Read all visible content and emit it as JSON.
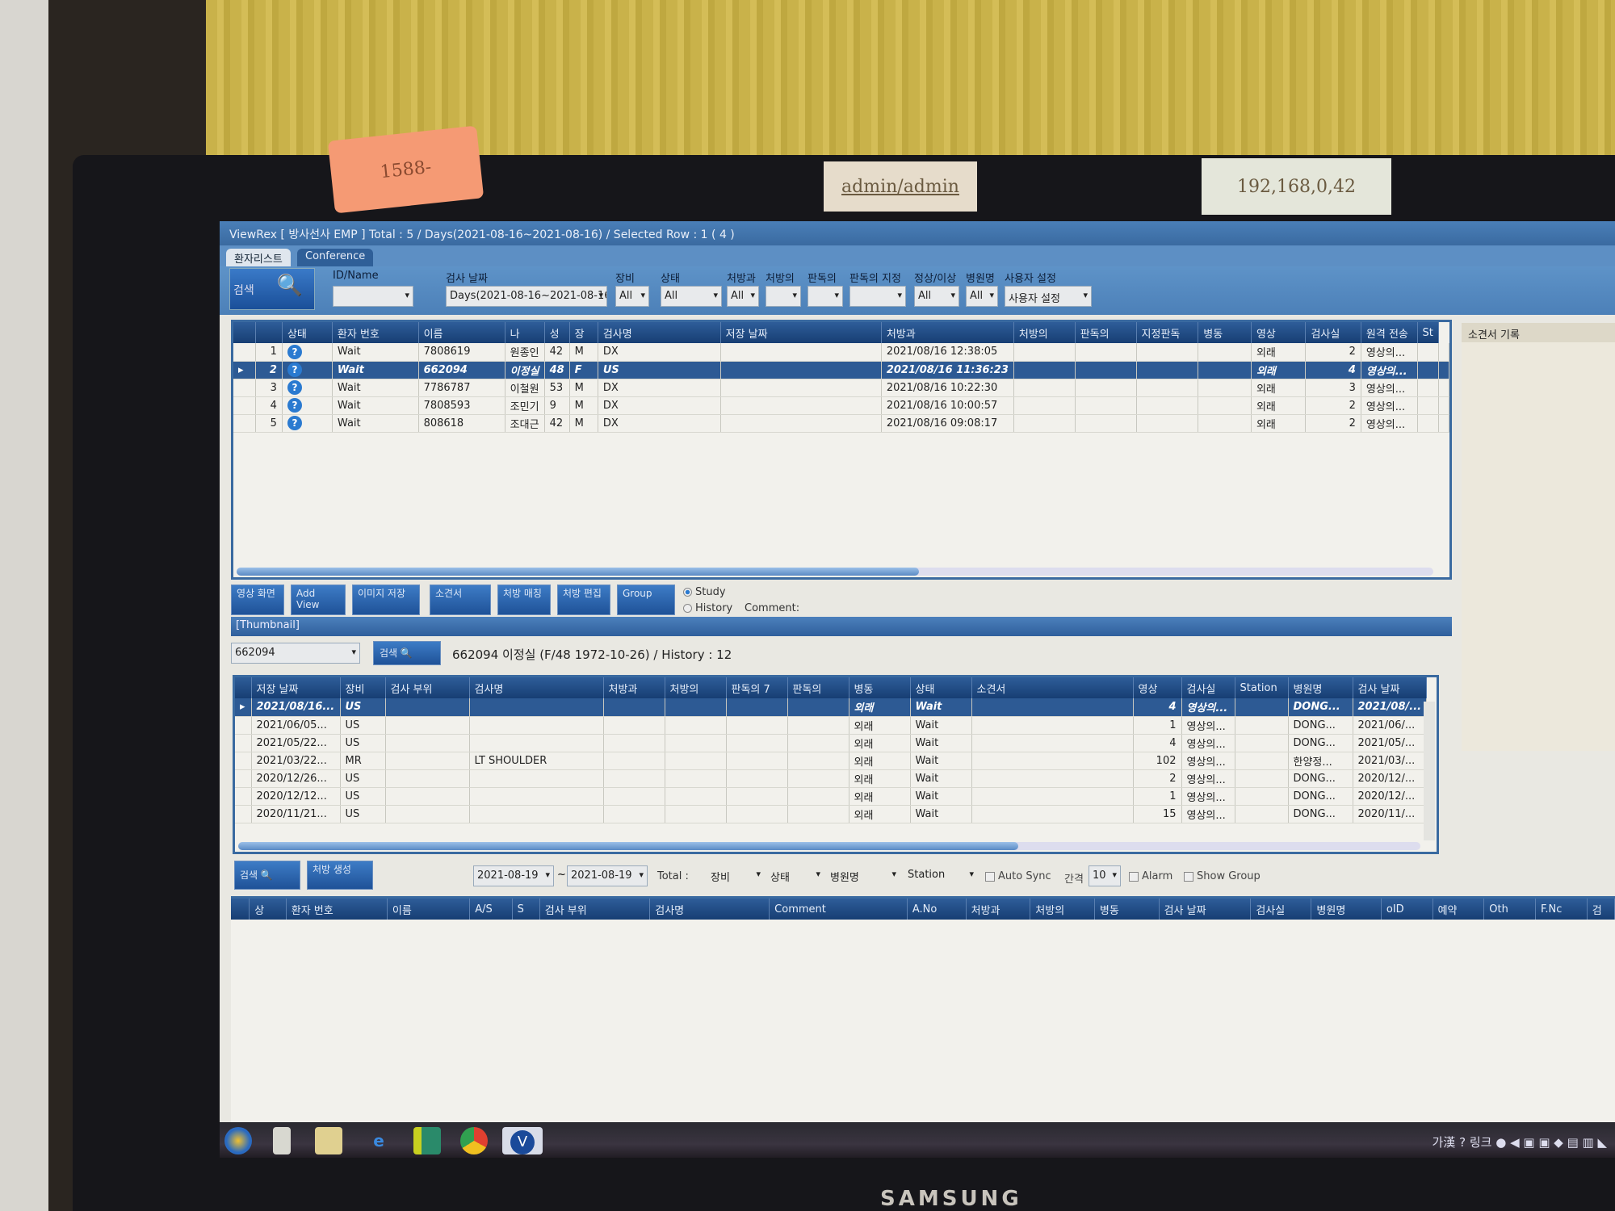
{
  "notes": {
    "phone": "1588-",
    "login": "admin/admin",
    "ip": "192,168,0,42"
  },
  "window": {
    "title": "ViewRex  [ 방사선사 EMP ] Total : 5 / Days(2021-08-16~2021-08-16) / Selected Row : 1 ( 4 )"
  },
  "tabs": [
    {
      "label": "환자리스트",
      "active": true
    },
    {
      "label": "Conference",
      "active": false
    }
  ],
  "filters": {
    "search_label": "검색",
    "fields": [
      {
        "label": "ID/Name",
        "value": ""
      },
      {
        "label": "검사 날짜",
        "value": "Days(2021-08-16~2021-08-16)"
      },
      {
        "label": "장비",
        "value": "All"
      },
      {
        "label": "상태",
        "value": "All"
      },
      {
        "label": "처방과",
        "value": "All"
      },
      {
        "label": "처방의",
        "value": ""
      },
      {
        "label": "판독의",
        "value": ""
      },
      {
        "label": "판독의 지정",
        "value": ""
      },
      {
        "label": "정상/이상",
        "value": "All"
      },
      {
        "label": "병원명",
        "value": "All"
      },
      {
        "label": "사용자 설정",
        "value": "사용자 설정"
      }
    ]
  },
  "worklist": {
    "columns": [
      "",
      "상태",
      "환자 번호",
      "이름",
      "나",
      "성",
      "장",
      "검사명",
      "저장 날짜",
      "처방과",
      "처방의",
      "판독의",
      "지정판독",
      "병동",
      "영상",
      "검사실",
      "원격 전송",
      "St"
    ],
    "rows": [
      {
        "no": "1",
        "status": "Wait",
        "id": "7808619",
        "name": "원종인",
        "age": "42",
        "sex": "M",
        "mod": "DX",
        "exam": "",
        "date": "2021/08/16 12:38:05",
        "ward": "외래",
        "images": "2",
        "room": "영상의...",
        "selected": false
      },
      {
        "no": "2",
        "status": "Wait",
        "id": "662094",
        "name": "이정실",
        "age": "48",
        "sex": "F",
        "mod": "US",
        "exam": "",
        "date": "2021/08/16 11:36:23",
        "ward": "외래",
        "images": "4",
        "room": "영상의...",
        "selected": true
      },
      {
        "no": "3",
        "status": "Wait",
        "id": "7786787",
        "name": "이철원",
        "age": "53",
        "sex": "M",
        "mod": "DX",
        "exam": "",
        "date": "2021/08/16 10:22:30",
        "ward": "외래",
        "images": "3",
        "room": "영상의...",
        "selected": false
      },
      {
        "no": "4",
        "status": "Wait",
        "id": "7808593",
        "name": "조민기",
        "age": "9",
        "sex": "M",
        "mod": "DX",
        "exam": "",
        "date": "2021/08/16 10:00:57",
        "ward": "외래",
        "images": "2",
        "room": "영상의...",
        "selected": false
      },
      {
        "no": "5",
        "status": "Wait",
        "id": "808618",
        "name": "조대근",
        "age": "42",
        "sex": "M",
        "mod": "DX",
        "exam": "",
        "date": "2021/08/16 09:08:17",
        "ward": "외래",
        "images": "2",
        "room": "영상의...",
        "selected": false
      }
    ]
  },
  "report_panel": {
    "title": "소견서 기록"
  },
  "toolbar": {
    "buttons": [
      "영상 화면",
      "Add View",
      "이미지 저장",
      "소견서",
      "처방 매칭",
      "처방 편집",
      "Group"
    ],
    "radio": [
      {
        "label": "Study",
        "checked": true
      },
      {
        "label": "History",
        "checked": false
      }
    ],
    "comment_label": "Comment:"
  },
  "thumbnail": {
    "label": "[Thumbnail]"
  },
  "history": {
    "patient_id": "662094",
    "search_label": "검색",
    "summary": "662094 이정실 (F/48  1972-10-26) / History : 12",
    "columns": [
      "저장 날짜",
      "장비",
      "검사 부위",
      "검사명",
      "처방과",
      "처방의",
      "판독의 7",
      "판독의",
      "병동",
      "상태",
      "소견서",
      "영상",
      "검사실",
      "Station",
      "병원명",
      "검사 날짜"
    ],
    "rows": [
      {
        "date": "2021/08/16...",
        "mod": "US",
        "part": "",
        "exam": "",
        "ward": "외래",
        "status": "Wait",
        "images": "4",
        "room": "영상의...",
        "hospital": "DONG...",
        "exam_date": "2021/08/...",
        "selected": true
      },
      {
        "date": "2021/06/05...",
        "mod": "US",
        "part": "",
        "exam": "",
        "ward": "외래",
        "status": "Wait",
        "images": "1",
        "room": "영상의...",
        "hospital": "DONG...",
        "exam_date": "2021/06/...",
        "selected": false
      },
      {
        "date": "2021/05/22...",
        "mod": "US",
        "part": "",
        "exam": "",
        "ward": "외래",
        "status": "Wait",
        "images": "4",
        "room": "영상의...",
        "hospital": "DONG...",
        "exam_date": "2021/05/...",
        "selected": false
      },
      {
        "date": "2021/03/22...",
        "mod": "MR",
        "part": "",
        "exam": "LT SHOULDER",
        "ward": "외래",
        "status": "Wait",
        "images": "102",
        "room": "영상의...",
        "hospital": "한양정...",
        "exam_date": "2021/03/...",
        "selected": false
      },
      {
        "date": "2020/12/26...",
        "mod": "US",
        "part": "",
        "exam": "",
        "ward": "외래",
        "status": "Wait",
        "images": "2",
        "room": "영상의...",
        "hospital": "DONG...",
        "exam_date": "2020/12/...",
        "selected": false
      },
      {
        "date": "2020/12/12...",
        "mod": "US",
        "part": "",
        "exam": "",
        "ward": "외래",
        "status": "Wait",
        "images": "1",
        "room": "영상의...",
        "hospital": "DONG...",
        "exam_date": "2020/12/...",
        "selected": false
      },
      {
        "date": "2020/11/21...",
        "mod": "US",
        "part": "",
        "exam": "",
        "ward": "외래",
        "status": "Wait",
        "images": "15",
        "room": "영상의...",
        "hospital": "DONG...",
        "exam_date": "2020/11/...",
        "selected": false
      }
    ]
  },
  "bottom": {
    "search_label": "검색",
    "rx_label": "처방 생성",
    "date_from": "2021-08-19",
    "date_to": "2021-08-19",
    "total_label": "Total :",
    "selects": [
      "장비",
      "상태",
      "병원명",
      "Station"
    ],
    "auto_sync": "Auto Sync",
    "interval_label": "간격",
    "interval": "10",
    "alarm": "Alarm",
    "show_group": "Show Group",
    "columns": [
      "",
      "상",
      "환자 번호",
      "이름",
      "A/S",
      "S",
      "검사 부위",
      "검사명",
      "Comment",
      "A.No",
      "처방과",
      "처방의",
      "병동",
      "검사 날짜",
      "검사실",
      "병원명",
      "oID",
      "예약",
      "Oth",
      "F.Nc",
      "검"
    ]
  },
  "taskbar": {
    "tray_text": "가漢",
    "tray_link": "링크"
  },
  "monitor": {
    "brand": "SAMSUNG"
  }
}
